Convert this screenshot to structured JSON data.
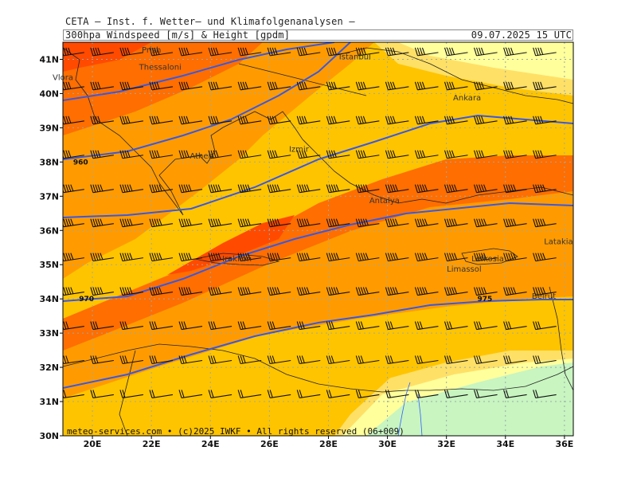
{
  "header": {
    "title": "CETA – Inst. f. Wetter– und Klimafolgenanalysen –",
    "subtitle": "300hpa Windspeed [m/s] & Height [gpdm]",
    "timestamp": "09.07.2025 15 UTC"
  },
  "footer": {
    "credit": "meteo-services.com • (c)2025 IWKF • All rights reserved (06+009)"
  },
  "axes": {
    "lat_labels": [
      "41N",
      "40N",
      "39N",
      "38N",
      "37N",
      "36N",
      "35N",
      "34N",
      "33N",
      "32N",
      "31N",
      "30N"
    ],
    "lon_labels": [
      "20E",
      "22E",
      "24E",
      "26E",
      "28E",
      "30E",
      "32E",
      "34E",
      "36E"
    ]
  },
  "places": [
    {
      "name": "Prish",
      "lon": 22.0,
      "lat": 41.2
    },
    {
      "name": "Thessaloni",
      "lon": 22.3,
      "lat": 40.7
    },
    {
      "name": "Vlora",
      "lon": 19.0,
      "lat": 40.4
    },
    {
      "name": "Istanbul",
      "lon": 28.9,
      "lat": 41.0
    },
    {
      "name": "Ankara",
      "lon": 32.7,
      "lat": 39.8
    },
    {
      "name": "Izmir",
      "lon": 27.0,
      "lat": 38.3
    },
    {
      "name": "Athen",
      "lon": 23.7,
      "lat": 38.1
    },
    {
      "name": "Antalya",
      "lon": 29.9,
      "lat": 36.8
    },
    {
      "name": "Iraklion",
      "lon": 24.9,
      "lat": 35.1
    },
    {
      "name": "Lefkosia",
      "lon": 33.4,
      "lat": 35.1
    },
    {
      "name": "Limassol",
      "lon": 32.6,
      "lat": 34.8
    },
    {
      "name": "Latakia",
      "lon": 35.8,
      "lat": 35.6
    },
    {
      "name": "Beirut",
      "lon": 35.3,
      "lat": 34.0
    }
  ],
  "contour_labels": [
    {
      "text": "960",
      "lon": 19.6,
      "lat": 38.0
    },
    {
      "text": "970",
      "lon": 19.8,
      "lat": 34.0
    },
    {
      "text": "975",
      "lon": 33.3,
      "lat": 34.0
    }
  ],
  "map_data": {
    "variable": "300hPa wind speed (m/s) and geopotential height (gpdm)",
    "extent": {
      "lon_min": 19,
      "lon_max": 36.3,
      "lat_min": 30,
      "lat_max": 41.5
    },
    "wind_bands": [
      {
        "name": "calm",
        "color": "#c8f5c0"
      },
      {
        "name": "light",
        "color": "#ffff9c"
      },
      {
        "name": "moderate",
        "color": "#ffe066"
      },
      {
        "name": "strong",
        "color": "#ffc400"
      },
      {
        "name": "very-strong",
        "color": "#ff9b00"
      },
      {
        "name": "jet",
        "color": "#ff6e00"
      },
      {
        "name": "jet-core",
        "color": "#ff4a00"
      }
    ],
    "height_contour_color": "#3a58e0"
  }
}
